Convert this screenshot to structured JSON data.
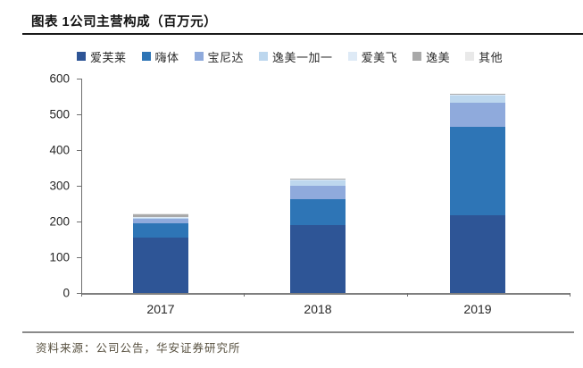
{
  "header": {
    "title": "图表 1公司主营构成（百万元）"
  },
  "footer": {
    "source": "资料来源：公司公告，华安证券研究所"
  },
  "colors": {
    "title_text": "#111111",
    "title_rule": "#1a1a1a",
    "footer_rule": "#8a8a8a",
    "source_text": "#57503f",
    "axis": "#6f6f6f",
    "tick_label": "#262626"
  },
  "chart_data": {
    "type": "bar",
    "stacked": true,
    "title": "图表 1公司主营构成（百万元）",
    "xlabel": "",
    "ylabel": "",
    "categories": [
      "2017",
      "2018",
      "2019"
    ],
    "series": [
      {
        "name": "爱芙莱",
        "color": "#2E5596",
        "values": [
          156,
          190,
          218
        ]
      },
      {
        "name": "嗨体",
        "color": "#2E75B6",
        "values": [
          38,
          73,
          246
        ]
      },
      {
        "name": "宝尼达",
        "color": "#8FAADC",
        "values": [
          13,
          37,
          68
        ]
      },
      {
        "name": "逸美一加一",
        "color": "#BDD7EE",
        "values": [
          4,
          15,
          20
        ]
      },
      {
        "name": "爱美飞",
        "color": "#DEEAF6",
        "values": [
          1,
          2,
          3
        ]
      },
      {
        "name": "逸美",
        "color": "#A9A9A9",
        "values": [
          8,
          3,
          2
        ]
      },
      {
        "name": "其他",
        "color": "#E9E9E9",
        "values": [
          2,
          1,
          1
        ]
      }
    ],
    "totals": [
      222,
      321,
      558
    ],
    "ylim": [
      0,
      600
    ],
    "yticks": [
      0,
      100,
      200,
      300,
      400,
      500,
      600
    ],
    "grid": false,
    "legend_position": "top"
  }
}
